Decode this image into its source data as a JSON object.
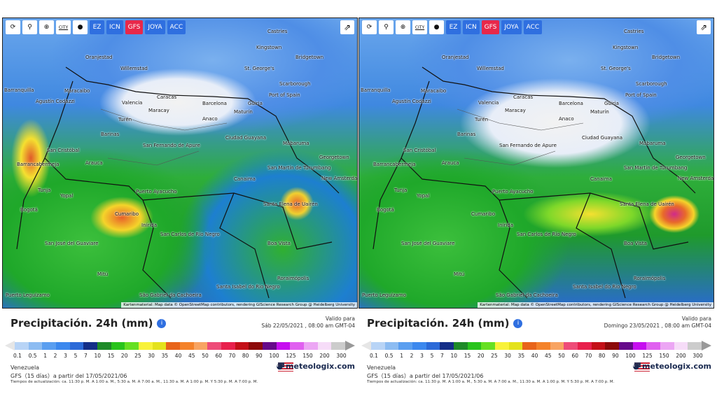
{
  "toolbar": {
    "buttons": [
      "refresh-icon",
      "location-pin-icon",
      "zoom-icon",
      "city-icon",
      "dot-icon"
    ],
    "city_label": "CITY",
    "models": [
      "EZ",
      "ICN",
      "GFS",
      "JOYA",
      "ACC"
    ],
    "active_model": "GFS",
    "share_icon": "share-icon"
  },
  "cities": [
    "Castries",
    "Kingstown",
    "Bridgetown",
    "Oranjestad",
    "Willemstad",
    "St. George's",
    "Barranquilla",
    "Maracaibo",
    "Scarborough",
    "Port of Spain",
    "Caracas",
    "Barcelona",
    "Agustín Codazzi",
    "Valencia",
    "Maracay",
    "Güiria",
    "Maturín",
    "Anaco",
    "Turén",
    "Barinas",
    "Ciudad Guayana",
    "San Cristóbal",
    "San Fernando de Apure",
    "Mabaruma",
    "Barrancabermeja",
    "Arauca",
    "San Martín de Turumbang",
    "Georgetown",
    "Canaima",
    "New Amsterdam",
    "Tunja",
    "Yopal",
    "Puerto Ayacucho",
    "Bogotá",
    "Cumaribo",
    "Santa Elena de Uairén",
    "Inírida",
    "San José del Guaviare",
    "Boa Vista",
    "San Carlos de Río Negro",
    "Mitú",
    "Roraimópolis",
    "Puerto Leguízamo",
    "São Gabriel da Cachoeira",
    "Santa Isabel do Rio Negro"
  ],
  "attribution": "Kartenmaterial: Map data © OpenStreetMap contributors, rendering GIScience Research Group @ Heidelberg University",
  "panels": [
    {
      "title": "Precipitación. 24h (mm)",
      "valid_label": "Valido para",
      "valid_date": "Sáb 22/05/2021 , 08:00 am GMT-04"
    },
    {
      "title": "Precipitación. 24h (mm)",
      "valid_label": "Valido para",
      "valid_date": "Domingo 23/05/2021 , 08:00 am GMT-04"
    }
  ],
  "legend": {
    "values": [
      "0.1",
      "0.5",
      "1",
      "2",
      "3",
      "5",
      "7",
      "10",
      "15",
      "20",
      "25",
      "30",
      "35",
      "40",
      "45",
      "50",
      "60",
      "70",
      "80",
      "90",
      "100",
      "125",
      "150",
      "200",
      "300"
    ],
    "colors": [
      "#b8d4f6",
      "#8cbcf2",
      "#5a9ef0",
      "#3c88ee",
      "#2c6ad8",
      "#142e88",
      "#1e8a28",
      "#28c41c",
      "#66e022",
      "#f8f23a",
      "#e4e21c",
      "#e8641a",
      "#f4822a",
      "#f8a462",
      "#ee4c78",
      "#e8204c",
      "#c41018",
      "#8c0a0a",
      "#660a8a",
      "#c60ef0",
      "#e060f0",
      "#eca6f4",
      "#f6dcf8",
      "#cccccc"
    ],
    "left_cap": "#e6e6e6",
    "right_cap": "#999999"
  },
  "region": "Venezuela",
  "model_run": "GFS（15 días）a partir del 17/05/2021/06",
  "brand": "meteologix.com",
  "update_times": "Tiempos de actualización: ca. 11:30 p. M. A 1:00 a. M., 5:30 a. M. A 7:00 a. M., 11:30 a. M. A 1:00 p. M. Y 5:30 p. M. A 7:00 p. M."
}
